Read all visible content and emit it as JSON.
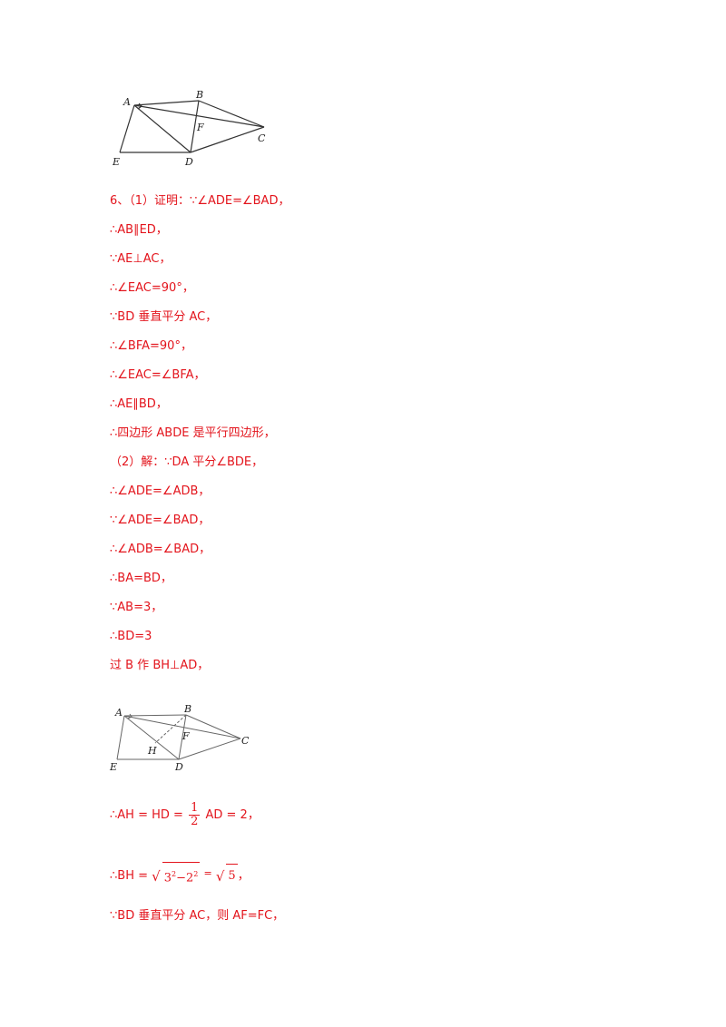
{
  "figure1": {
    "labels": {
      "A": "A",
      "B": "B",
      "C": "C",
      "D": "D",
      "E": "E",
      "F": "F"
    }
  },
  "figure2": {
    "labels": {
      "A": "A",
      "B": "B",
      "C": "C",
      "D": "D",
      "E": "E",
      "F": "F",
      "H": "H"
    }
  },
  "solution": {
    "lines": [
      "6、（1）证明：∵∠ADE=∠BAD，",
      "∴AB∥ED，",
      "∵AE⊥AC，",
      "∴∠EAC=90°，",
      "∵BD 垂直平分 AC，",
      "∴∠BFA=90°，",
      "∴∠EAC=∠BFA，",
      "∴AE∥BD，",
      "∴四边形 ABDE 是平行四边形，",
      "（2）解：∵DA 平分∠BDE，",
      "∴∠ADE=∠ADB，",
      "∵∠ADE=∠BAD，",
      "∴∠ADB=∠BAD，",
      "∴BA=BD，",
      "∵AB=3，",
      "∴BD=3",
      "过 B 作 BH⊥AD，"
    ],
    "ah_prefix": "∴AH = HD =",
    "ah_num": "1",
    "ah_den": "2",
    "ah_suffix": "AD = 2，",
    "bh_prefix": "∴BH =",
    "bh_radicand_a": "3",
    "bh_exp_a": "2",
    "bh_minus": "−",
    "bh_radicand_b": "2",
    "bh_exp_b": "2",
    "bh_equals": "=",
    "bh_result": "5",
    "bh_suffix": "，",
    "final_line": "∵BD 垂直平分 AC，则 AF=FC，"
  }
}
